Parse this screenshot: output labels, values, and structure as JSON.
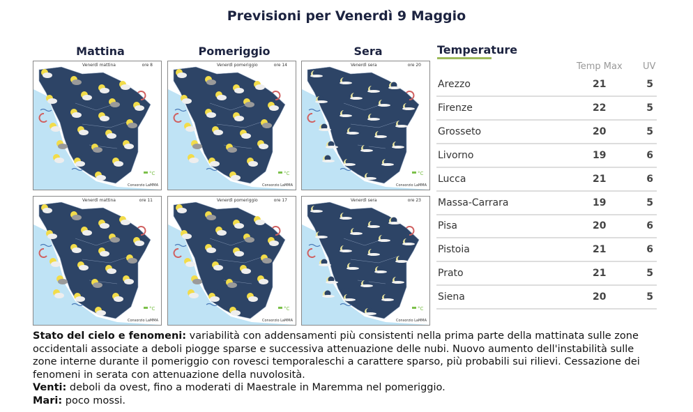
{
  "title": "Previsioni per Venerdì 9 Maggio",
  "columns": [
    "Mattina",
    "Pomeriggio",
    "Sera"
  ],
  "maps": [
    {
      "label": "Venerdì mattina",
      "hour": "ore 8",
      "style": "day",
      "credit": "Consorzio LaMMA"
    },
    {
      "label": "Venerdì pomeriggio",
      "hour": "ore 14",
      "style": "day",
      "credit": "Consorzio LaMMA"
    },
    {
      "label": "Venerdì sera",
      "hour": "ore 20",
      "style": "night",
      "credit": "Consorzio LaMMA"
    },
    {
      "label": "Venerdì mattina",
      "hour": "ore 11",
      "style": "day",
      "credit": "Consorzio LaMMA"
    },
    {
      "label": "Venerdì pomeriggio",
      "hour": "ore 17",
      "style": "day",
      "credit": "Consorzio LaMMA"
    },
    {
      "label": "Venerdì sera",
      "hour": "ore 23",
      "style": "night",
      "credit": "Consorzio LaMMA"
    }
  ],
  "temperature": {
    "title": "Temperature",
    "headers": {
      "tmax": "Temp Max",
      "uv": "UV"
    },
    "rows": [
      {
        "city": "Arezzo",
        "tmax": "21",
        "uv": "5"
      },
      {
        "city": "Firenze",
        "tmax": "22",
        "uv": "5"
      },
      {
        "city": "Grosseto",
        "tmax": "20",
        "uv": "5"
      },
      {
        "city": "Livorno",
        "tmax": "19",
        "uv": "6"
      },
      {
        "city": "Lucca",
        "tmax": "21",
        "uv": "6"
      },
      {
        "city": "Massa-Carrara",
        "tmax": "19",
        "uv": "5"
      },
      {
        "city": "Pisa",
        "tmax": "20",
        "uv": "6"
      },
      {
        "city": "Pistoia",
        "tmax": "21",
        "uv": "6"
      },
      {
        "city": "Prato",
        "tmax": "21",
        "uv": "5"
      },
      {
        "city": "Siena",
        "tmax": "20",
        "uv": "5"
      }
    ]
  },
  "forecast": {
    "sky_label": "Stato del cielo e fenomeni:",
    "sky_text": " variabilità con addensamenti più consistenti nella prima parte della mattinata sulle zone occidentali associate a deboli piogge sparse e successiva attenuazione delle nubi. Nuovo aumento dell'instabilità sulle zone interne durante il pomeriggio con rovesci temporaleschi a carattere sparso, più probabili sui rilievi. Cessazione dei fenomeni in serata con attenuazione della nuvolosità.",
    "wind_label": "Venti:",
    "wind_text": " deboli da ovest, fino a moderati di Maestrale in Maremma nel pomeriggio.",
    "sea_label": "Mari:",
    "sea_text": " poco mossi."
  },
  "colors": {
    "sea": "#bfe3f5",
    "land": "#2d4466",
    "sun": "#f2dc4a",
    "cloud": "#eeeeee",
    "accent": "#9dba5a",
    "title": "#1c2340"
  }
}
